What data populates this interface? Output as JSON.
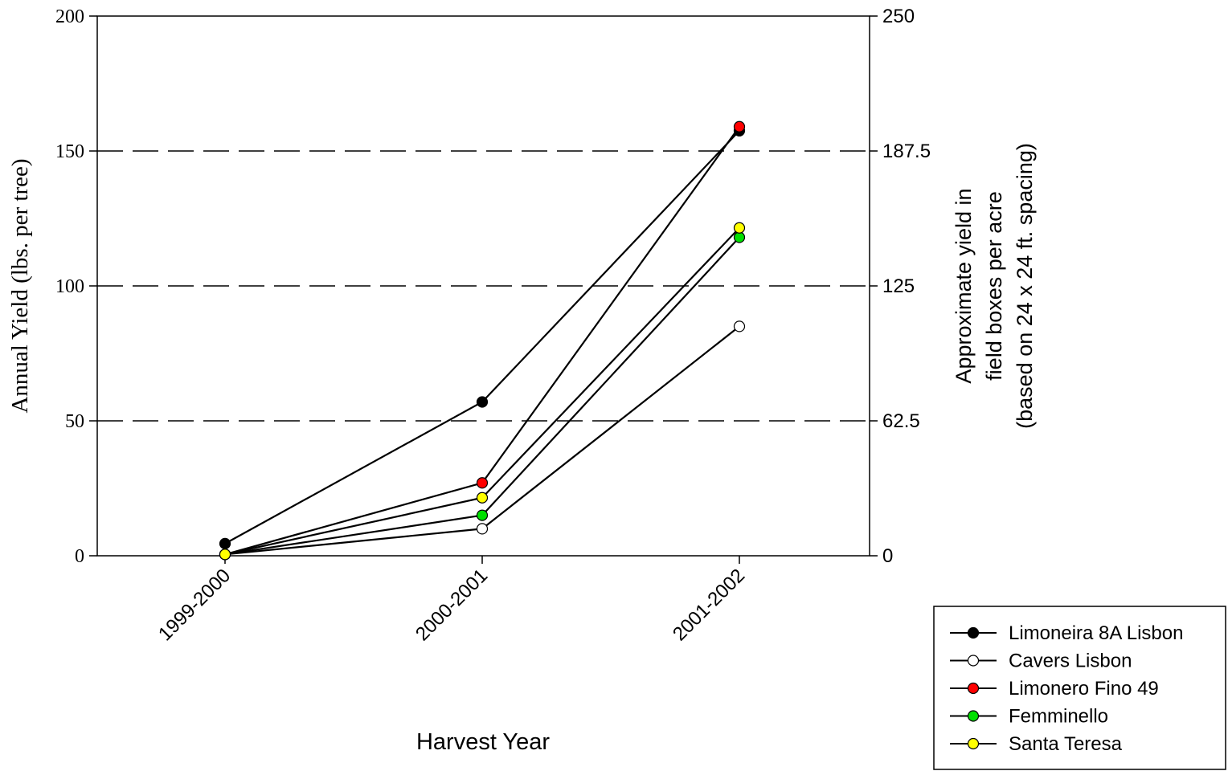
{
  "chart_data": {
    "type": "line",
    "categories": [
      "1999-2000",
      "2000-2001",
      "2001-2002"
    ],
    "series": [
      {
        "name": "Limoneira 8A Lisbon",
        "values": [
          4.5,
          57,
          157.5
        ],
        "color": "#000000"
      },
      {
        "name": "Cavers Lisbon",
        "values": [
          0.5,
          10,
          85
        ],
        "color": "#ffffff"
      },
      {
        "name": "Limonero Fino 49",
        "values": [
          0.5,
          27,
          159
        ],
        "color": "#ff0000"
      },
      {
        "name": "Femminello",
        "values": [
          0.5,
          15,
          118
        ],
        "color": "#00e000"
      },
      {
        "name": "Santa Teresa",
        "values": [
          0.5,
          21.5,
          121.5
        ],
        "color": "#ffff00"
      }
    ],
    "xlabel": "Harvest Year",
    "ylabel": "Annual Yield (lbs. per tree)",
    "ylim": [
      0,
      200
    ],
    "yticks": [
      "0",
      "50",
      "100",
      "150",
      "200"
    ],
    "y2label": [
      "Approximate yield in",
      "field boxes per acre",
      "(based on 24 x 24 ft. spacing)"
    ],
    "y2lim": [
      0,
      250
    ],
    "y2ticks": [
      "0",
      "62.5",
      "125",
      "187.5",
      "250"
    ],
    "grid": "horizontal dashed at 50, 100, 150",
    "legend_position": "bottom-right"
  }
}
